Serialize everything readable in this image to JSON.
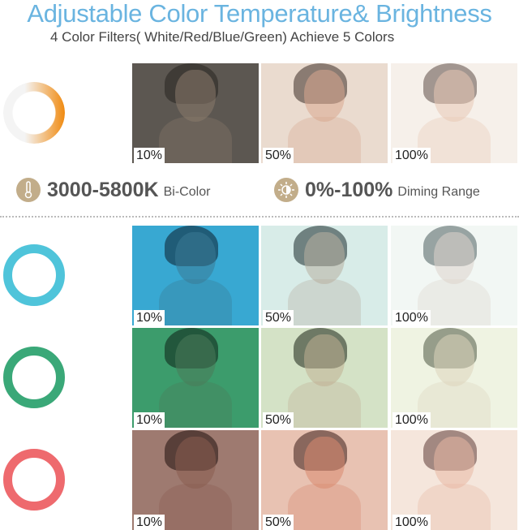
{
  "header": {
    "title": "Adjustable Color Temperature& Brightness",
    "subtitle": "4 Color Filters( White/Red/Blue/Green) Achieve 5 Colors"
  },
  "features": [
    {
      "icon": "thermometer-icon",
      "value": "3000-5800K",
      "label": "Bi-Color"
    },
    {
      "icon": "brightness-icon",
      "value": "0%-100%",
      "label": "Diming Range"
    }
  ],
  "accent_color": "#6ab4e0",
  "rows": [
    {
      "filter": "white",
      "ring_color": "linear-gradient(90deg,#f4f4f4 35%,#f08a10)",
      "cells": [
        {
          "label": "10%",
          "bg": "#5c5751",
          "skin": "#8a7a6c",
          "hair": "#2c2824"
        },
        {
          "label": "50%",
          "bg": "#eadbcf",
          "skin": "#d8a890",
          "hair": "#4a3a34"
        },
        {
          "label": "100%",
          "bg": "#f6f0ea",
          "skin": "#e8c8b4",
          "hair": "#6a5a54"
        }
      ]
    },
    {
      "filter": "blue",
      "ring_color": "#4fc4da",
      "cells": [
        {
          "label": "10%",
          "bg": "#38a8d2",
          "skin": "#3a7a96",
          "hair": "#102a3a"
        },
        {
          "label": "50%",
          "bg": "#d8ece8",
          "skin": "#b8b0a0",
          "hair": "#2a3a3a"
        },
        {
          "label": "100%",
          "bg": "#f2f7f4",
          "skin": "#dcd4cc",
          "hair": "#5a6a6a"
        }
      ]
    },
    {
      "filter": "green",
      "ring_color": "#3aa878",
      "cells": [
        {
          "label": "10%",
          "bg": "#3c9c6c",
          "skin": "#4a7a5a",
          "hair": "#102a1c"
        },
        {
          "label": "50%",
          "bg": "#d4e2c6",
          "skin": "#c0b094",
          "hair": "#2a3424"
        },
        {
          "label": "100%",
          "bg": "#eff3e2",
          "skin": "#ddd4bc",
          "hair": "#5a6450"
        }
      ]
    },
    {
      "filter": "red",
      "ring_color": "#ee6a6e",
      "cells": [
        {
          "label": "10%",
          "bg": "#9e7a70",
          "skin": "#8a5c50",
          "hair": "#2a1814"
        },
        {
          "label": "50%",
          "bg": "#e8c2b2",
          "skin": "#d88a70",
          "hair": "#4a2a24"
        },
        {
          "label": "100%",
          "bg": "#f5e6dc",
          "skin": "#e8b8a4",
          "hair": "#6a4a44"
        }
      ]
    }
  ]
}
